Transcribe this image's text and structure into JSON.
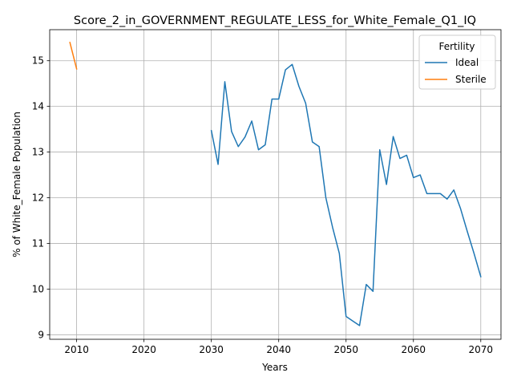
{
  "chart_data": {
    "type": "line",
    "title": "Score_2_in_GOVERNMENT_REGULATE_LESS_for_White_Female_Q1_IQ",
    "xlabel": "Years",
    "ylabel": "% of White_Female Population",
    "xlim": [
      2006,
      2073
    ],
    "ylim": [
      8.9,
      15.68
    ],
    "xticks": [
      2010,
      2020,
      2030,
      2040,
      2050,
      2060,
      2070
    ],
    "yticks": [
      9,
      10,
      11,
      12,
      13,
      14,
      15
    ],
    "grid": true,
    "legend": {
      "title": "Fertility",
      "placement": "top-right"
    },
    "series": [
      {
        "name": "Ideal",
        "color": "#1f77b4",
        "x": [
          2030,
          2031,
          2032,
          2033,
          2034,
          2035,
          2036,
          2037,
          2038,
          2039,
          2040,
          2041,
          2042,
          2043,
          2044,
          2045,
          2046,
          2047,
          2048,
          2049,
          2050,
          2051,
          2052,
          2053,
          2054,
          2055,
          2056,
          2057,
          2058,
          2059,
          2060,
          2061,
          2062,
          2063,
          2064,
          2065,
          2066,
          2067,
          2068,
          2069,
          2070
        ],
        "y": [
          13.47,
          12.73,
          14.54,
          13.45,
          13.12,
          13.33,
          13.68,
          13.05,
          13.16,
          14.16,
          14.16,
          14.8,
          14.92,
          14.44,
          14.07,
          13.22,
          13.12,
          12.0,
          11.35,
          10.78,
          9.4,
          9.3,
          9.2,
          10.1,
          9.95,
          13.05,
          12.29,
          13.34,
          12.86,
          12.93,
          12.44,
          12.5,
          12.09,
          12.09,
          12.09,
          11.97,
          12.17,
          11.76,
          11.26,
          10.78,
          10.27
        ]
      },
      {
        "name": "Sterile",
        "color": "#ff7f0e",
        "x": [
          2009,
          2010
        ],
        "y": [
          15.4,
          14.82
        ]
      }
    ]
  }
}
